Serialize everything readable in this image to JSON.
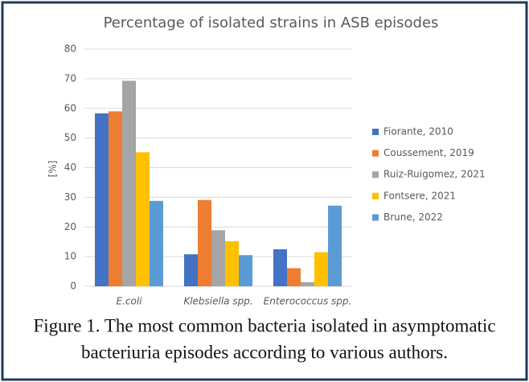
{
  "chart_data": {
    "type": "bar",
    "title": "Percentage of isolated strains in ASB episodes",
    "ylabel": "[%]",
    "categories": [
      "E.coli",
      "Klebsiella spp.",
      "Enterococcus spp."
    ],
    "series": [
      {
        "name": "Fiorante, 2010",
        "color": "#4472c4",
        "values": [
          58.3,
          10.8,
          12.5
        ]
      },
      {
        "name": "Coussement, 2019",
        "color": "#ed7d31",
        "values": [
          59,
          29.1,
          6.1
        ]
      },
      {
        "name": "Ruiz-Ruigomez, 2021",
        "color": "#a5a5a5",
        "values": [
          69.3,
          18.9,
          1.4
        ]
      },
      {
        "name": "Fontsere, 2021",
        "color": "#ffc000",
        "values": [
          45.2,
          15.2,
          11.5
        ]
      },
      {
        "name": "Brune, 2022",
        "color": "#5b9bd5",
        "values": [
          28.8,
          10.5,
          27.2
        ]
      }
    ],
    "ylim": [
      0,
      80
    ],
    "yticks": [
      0,
      10,
      20,
      30,
      40,
      50,
      60,
      70,
      80
    ],
    "grid": true,
    "legend": "right"
  },
  "caption": [
    "Figure 1. The most common bacteria isolated in asymptomatic",
    "bacteriuria episodes according to various authors."
  ]
}
